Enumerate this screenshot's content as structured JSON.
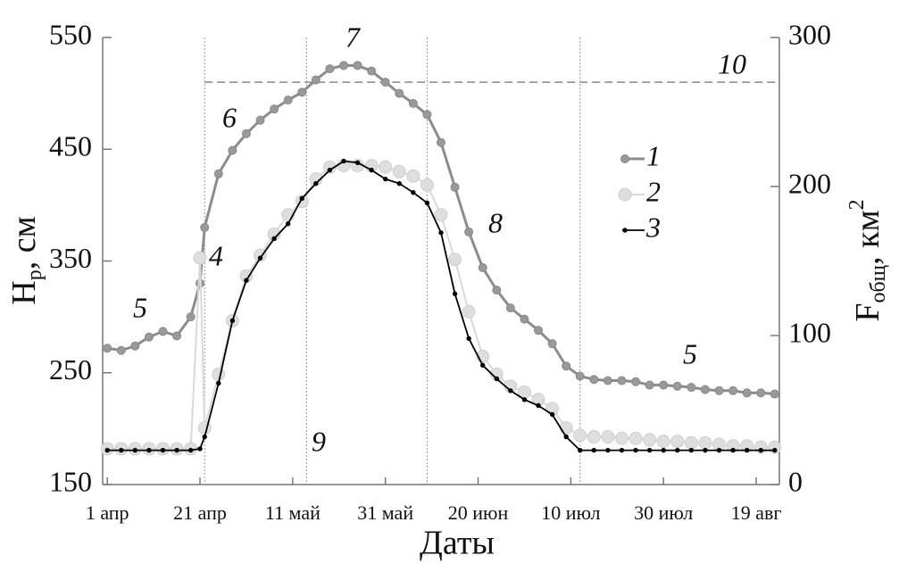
{
  "chart_data": {
    "type": "line",
    "xlabel": "Даты",
    "ylabel": [
      "H",
      "р",
      ", см"
    ],
    "y2label": [
      "F",
      "общ",
      ", км",
      "2"
    ],
    "x": [
      0,
      3,
      6,
      9,
      12,
      15,
      18,
      20,
      21,
      24,
      27,
      30,
      33,
      36,
      39,
      42,
      45,
      48,
      51,
      54,
      57,
      60,
      63,
      66,
      69,
      72,
      75,
      78,
      81,
      84,
      87,
      90,
      93,
      96,
      99,
      102,
      105,
      108,
      111,
      114,
      117,
      120,
      123,
      126,
      129,
      132,
      135,
      138,
      141,
      144
    ],
    "xlim": [
      -1,
      145
    ],
    "xticks": [
      {
        "value": 0,
        "label": "1 апр"
      },
      {
        "value": 20,
        "label": "21 апр"
      },
      {
        "value": 40,
        "label": "11 май"
      },
      {
        "value": 60,
        "label": "31 май"
      },
      {
        "value": 80,
        "label": "20 июн"
      },
      {
        "value": 100,
        "label": "10 июл"
      },
      {
        "value": 120,
        "label": "30 июл"
      },
      {
        "value": 140,
        "label": "19 авг"
      }
    ],
    "ylim": [
      150,
      550
    ],
    "yticks": [
      150,
      250,
      350,
      450,
      550
    ],
    "y2lim": [
      0,
      300
    ],
    "y2ticks": [
      0,
      100,
      200,
      300
    ],
    "series": [
      {
        "name": "1",
        "color": "#8c8c8c",
        "values": [
          272,
          270,
          274,
          282,
          287,
          283,
          300,
          330,
          380,
          428,
          449,
          464,
          476,
          486,
          494,
          501,
          512,
          522,
          525,
          525,
          520,
          510,
          500,
          491,
          481,
          456,
          416,
          376,
          344,
          324,
          308,
          298,
          288,
          276,
          256,
          247,
          244,
          243,
          243,
          242,
          239,
          239,
          238,
          237,
          235,
          234,
          234,
          232,
          232,
          231
        ]
      },
      {
        "name": "2",
        "color": "#d9d9d9",
        "axis": "y2",
        "values": [
          24,
          24,
          24,
          24,
          24,
          24,
          24,
          152,
          38,
          74,
          110,
          140,
          154,
          168,
          181,
          190,
          205,
          213,
          214,
          214,
          214,
          213,
          210,
          207,
          201,
          181,
          151,
          116,
          86,
          74,
          66,
          62,
          57,
          51,
          38,
          33,
          32,
          32,
          31,
          31,
          30,
          29,
          29,
          28,
          28,
          27,
          26,
          26,
          25,
          25
        ]
      },
      {
        "name": "3",
        "color": "#000000",
        "axis": "y2",
        "values": [
          23,
          23,
          23,
          23,
          23,
          23,
          23,
          24,
          32,
          68,
          110,
          137,
          152,
          165,
          175,
          192,
          202,
          211,
          217,
          216,
          211,
          205,
          202,
          196,
          189,
          169,
          128,
          98,
          80,
          71,
          63,
          57,
          53,
          47,
          32,
          23,
          23,
          23,
          23,
          23,
          23,
          23,
          23,
          23,
          23,
          23,
          23,
          23,
          23,
          23
        ]
      }
    ],
    "vlines": [
      21,
      43,
      69,
      102
    ],
    "hline": 510,
    "annotations": [
      "5",
      "4",
      "6",
      "7",
      "10",
      "8",
      "9",
      "5"
    ]
  }
}
